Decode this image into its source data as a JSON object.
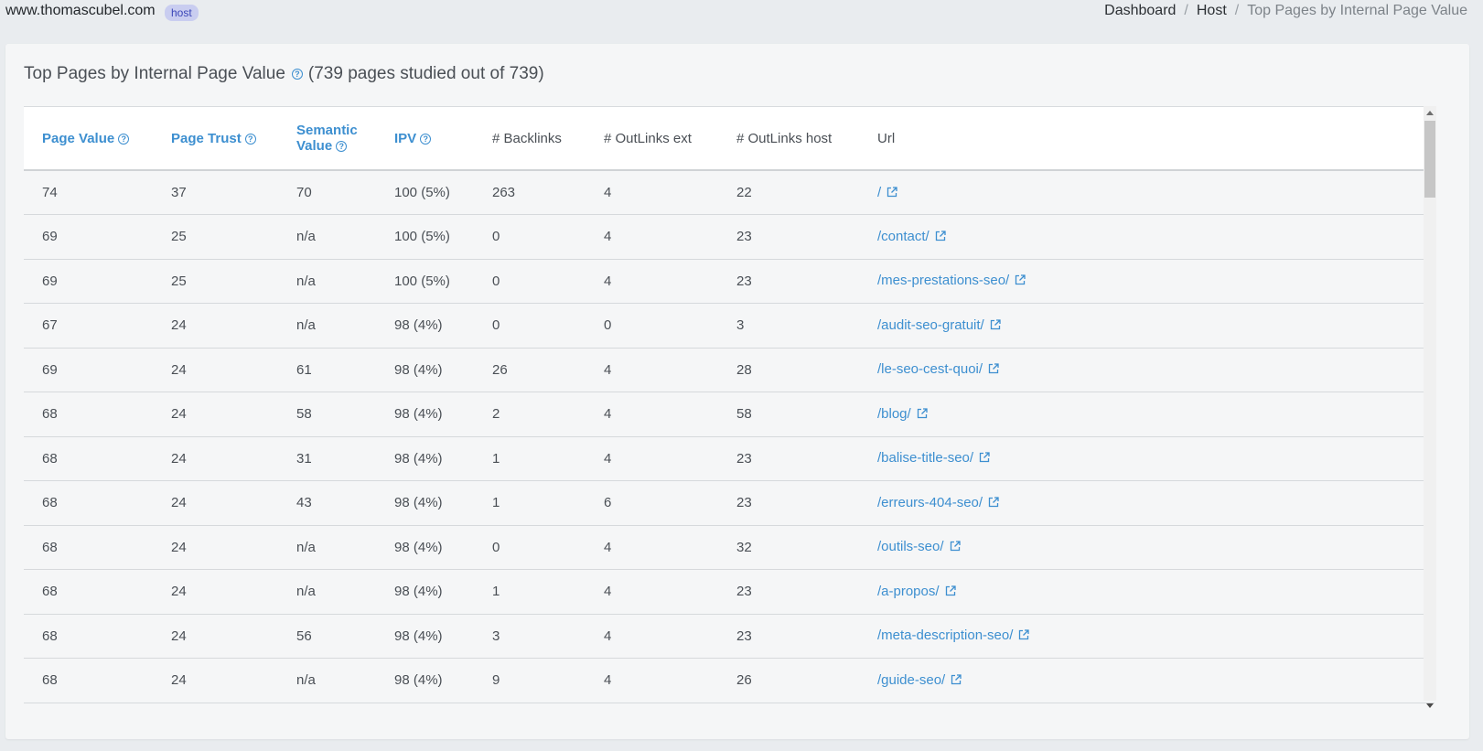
{
  "header": {
    "site_name": "www.thomascubel.com",
    "badge": "host",
    "breadcrumb": [
      "Dashboard",
      "Host",
      "Top Pages by Internal Page Value"
    ]
  },
  "card": {
    "title": "Top Pages by Internal Page Value",
    "subtitle": "(739 pages studied out of 739)"
  },
  "table": {
    "columns": [
      {
        "line1": "Page Value",
        "line2": "",
        "sortable": true,
        "help": true
      },
      {
        "line1": "Page Trust",
        "line2": "",
        "sortable": true,
        "help": true
      },
      {
        "line1": "Semantic",
        "line2": "Value",
        "sortable": true,
        "help": true
      },
      {
        "line1": "IPV",
        "line2": "",
        "sortable": true,
        "help": true
      },
      {
        "line1": "# Backlinks",
        "line2": "",
        "sortable": false,
        "help": false
      },
      {
        "line1": "# OutLinks ext",
        "line2": "",
        "sortable": false,
        "help": false
      },
      {
        "line1": "# OutLinks host",
        "line2": "",
        "sortable": false,
        "help": false
      },
      {
        "line1": "Url",
        "line2": "",
        "sortable": false,
        "help": false
      }
    ],
    "rows": [
      [
        "74",
        "37",
        "70",
        "100 (5%)",
        "263",
        "4",
        "22",
        "/"
      ],
      [
        "69",
        "25",
        "n/a",
        "100 (5%)",
        "0",
        "4",
        "23",
        "/contact/"
      ],
      [
        "69",
        "25",
        "n/a",
        "100 (5%)",
        "0",
        "4",
        "23",
        "/mes-prestations-seo/"
      ],
      [
        "67",
        "24",
        "n/a",
        "98 (4%)",
        "0",
        "0",
        "3",
        "/audit-seo-gratuit/"
      ],
      [
        "69",
        "24",
        "61",
        "98 (4%)",
        "26",
        "4",
        "28",
        "/le-seo-cest-quoi/"
      ],
      [
        "68",
        "24",
        "58",
        "98 (4%)",
        "2",
        "4",
        "58",
        "/blog/"
      ],
      [
        "68",
        "24",
        "31",
        "98 (4%)",
        "1",
        "4",
        "23",
        "/balise-title-seo/"
      ],
      [
        "68",
        "24",
        "43",
        "98 (4%)",
        "1",
        "6",
        "23",
        "/erreurs-404-seo/"
      ],
      [
        "68",
        "24",
        "n/a",
        "98 (4%)",
        "0",
        "4",
        "32",
        "/outils-seo/"
      ],
      [
        "68",
        "24",
        "n/a",
        "98 (4%)",
        "1",
        "4",
        "23",
        "/a-propos/"
      ],
      [
        "68",
        "24",
        "56",
        "98 (4%)",
        "3",
        "4",
        "23",
        "/meta-description-seo/"
      ],
      [
        "68",
        "24",
        "n/a",
        "98 (4%)",
        "9",
        "4",
        "26",
        "/guide-seo/"
      ]
    ]
  },
  "icons": {
    "help": "question-circle-icon",
    "external": "external-link-icon"
  },
  "colors": {
    "accent": "#3d8fd0",
    "badge_bg": "#c9cdf0",
    "badge_text": "#3b46b8"
  }
}
